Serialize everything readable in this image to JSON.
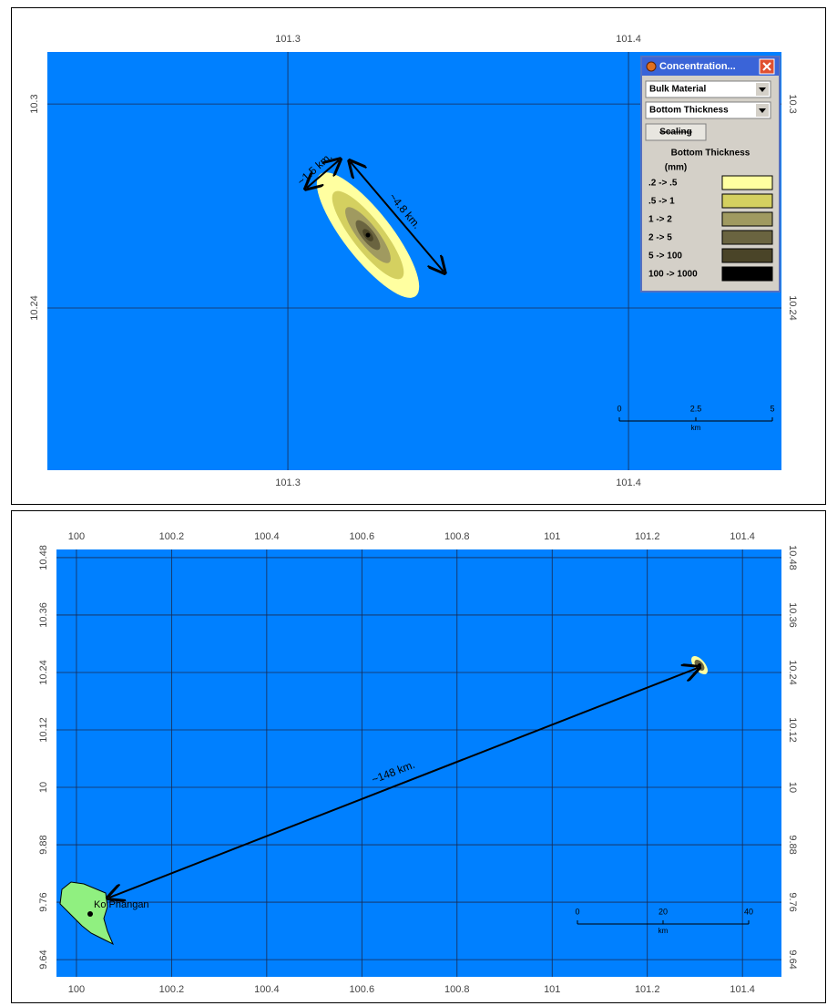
{
  "maps": [
    {
      "xlim": [
        101.2294,
        101.4449
      ],
      "ylim": [
        10.1923,
        10.3153
      ],
      "xticks": [
        101.3,
        101.4
      ],
      "yticks": [
        10.3,
        10.24
      ],
      "annotations": [
        "~1.5 km.",
        "~4.8 km."
      ],
      "legend": {
        "title": "Concentration...",
        "material": "Bulk Material",
        "variable": "Bottom Thickness",
        "button": "Scaling",
        "heading": "Bottom Thickness",
        "unit": "(mm)",
        "entries": [
          {
            "label": ".2 -> .5",
            "color": "#ffffa0"
          },
          {
            "label": ".5 -> 1",
            "color": "#d4d060"
          },
          {
            "label": "1 -> 2",
            "color": "#a09a60"
          },
          {
            "label": "2 -> 5",
            "color": "#6a6440"
          },
          {
            "label": "5 -> 100",
            "color": "#4a4428"
          },
          {
            "label": "100 -> 1000",
            "color": "#000000"
          }
        ]
      },
      "scale": {
        "ticks": [
          "0",
          "2.5",
          "5"
        ],
        "unit": "km"
      }
    },
    {
      "xlim": [
        99.958,
        101.482
      ],
      "ylim": [
        9.604,
        10.497
      ],
      "xticks": [
        100,
        100.2,
        100.4,
        100.6,
        100.8,
        101,
        101.2,
        101.4
      ],
      "yticks": [
        10.48,
        10.36,
        10.24,
        10.12,
        10,
        9.88,
        9.76,
        9.64
      ],
      "annotations": [
        "~148 km.",
        "Ko Phangan"
      ],
      "scale": {
        "ticks": [
          "0",
          "20",
          "40"
        ],
        "unit": "km"
      }
    }
  ]
}
